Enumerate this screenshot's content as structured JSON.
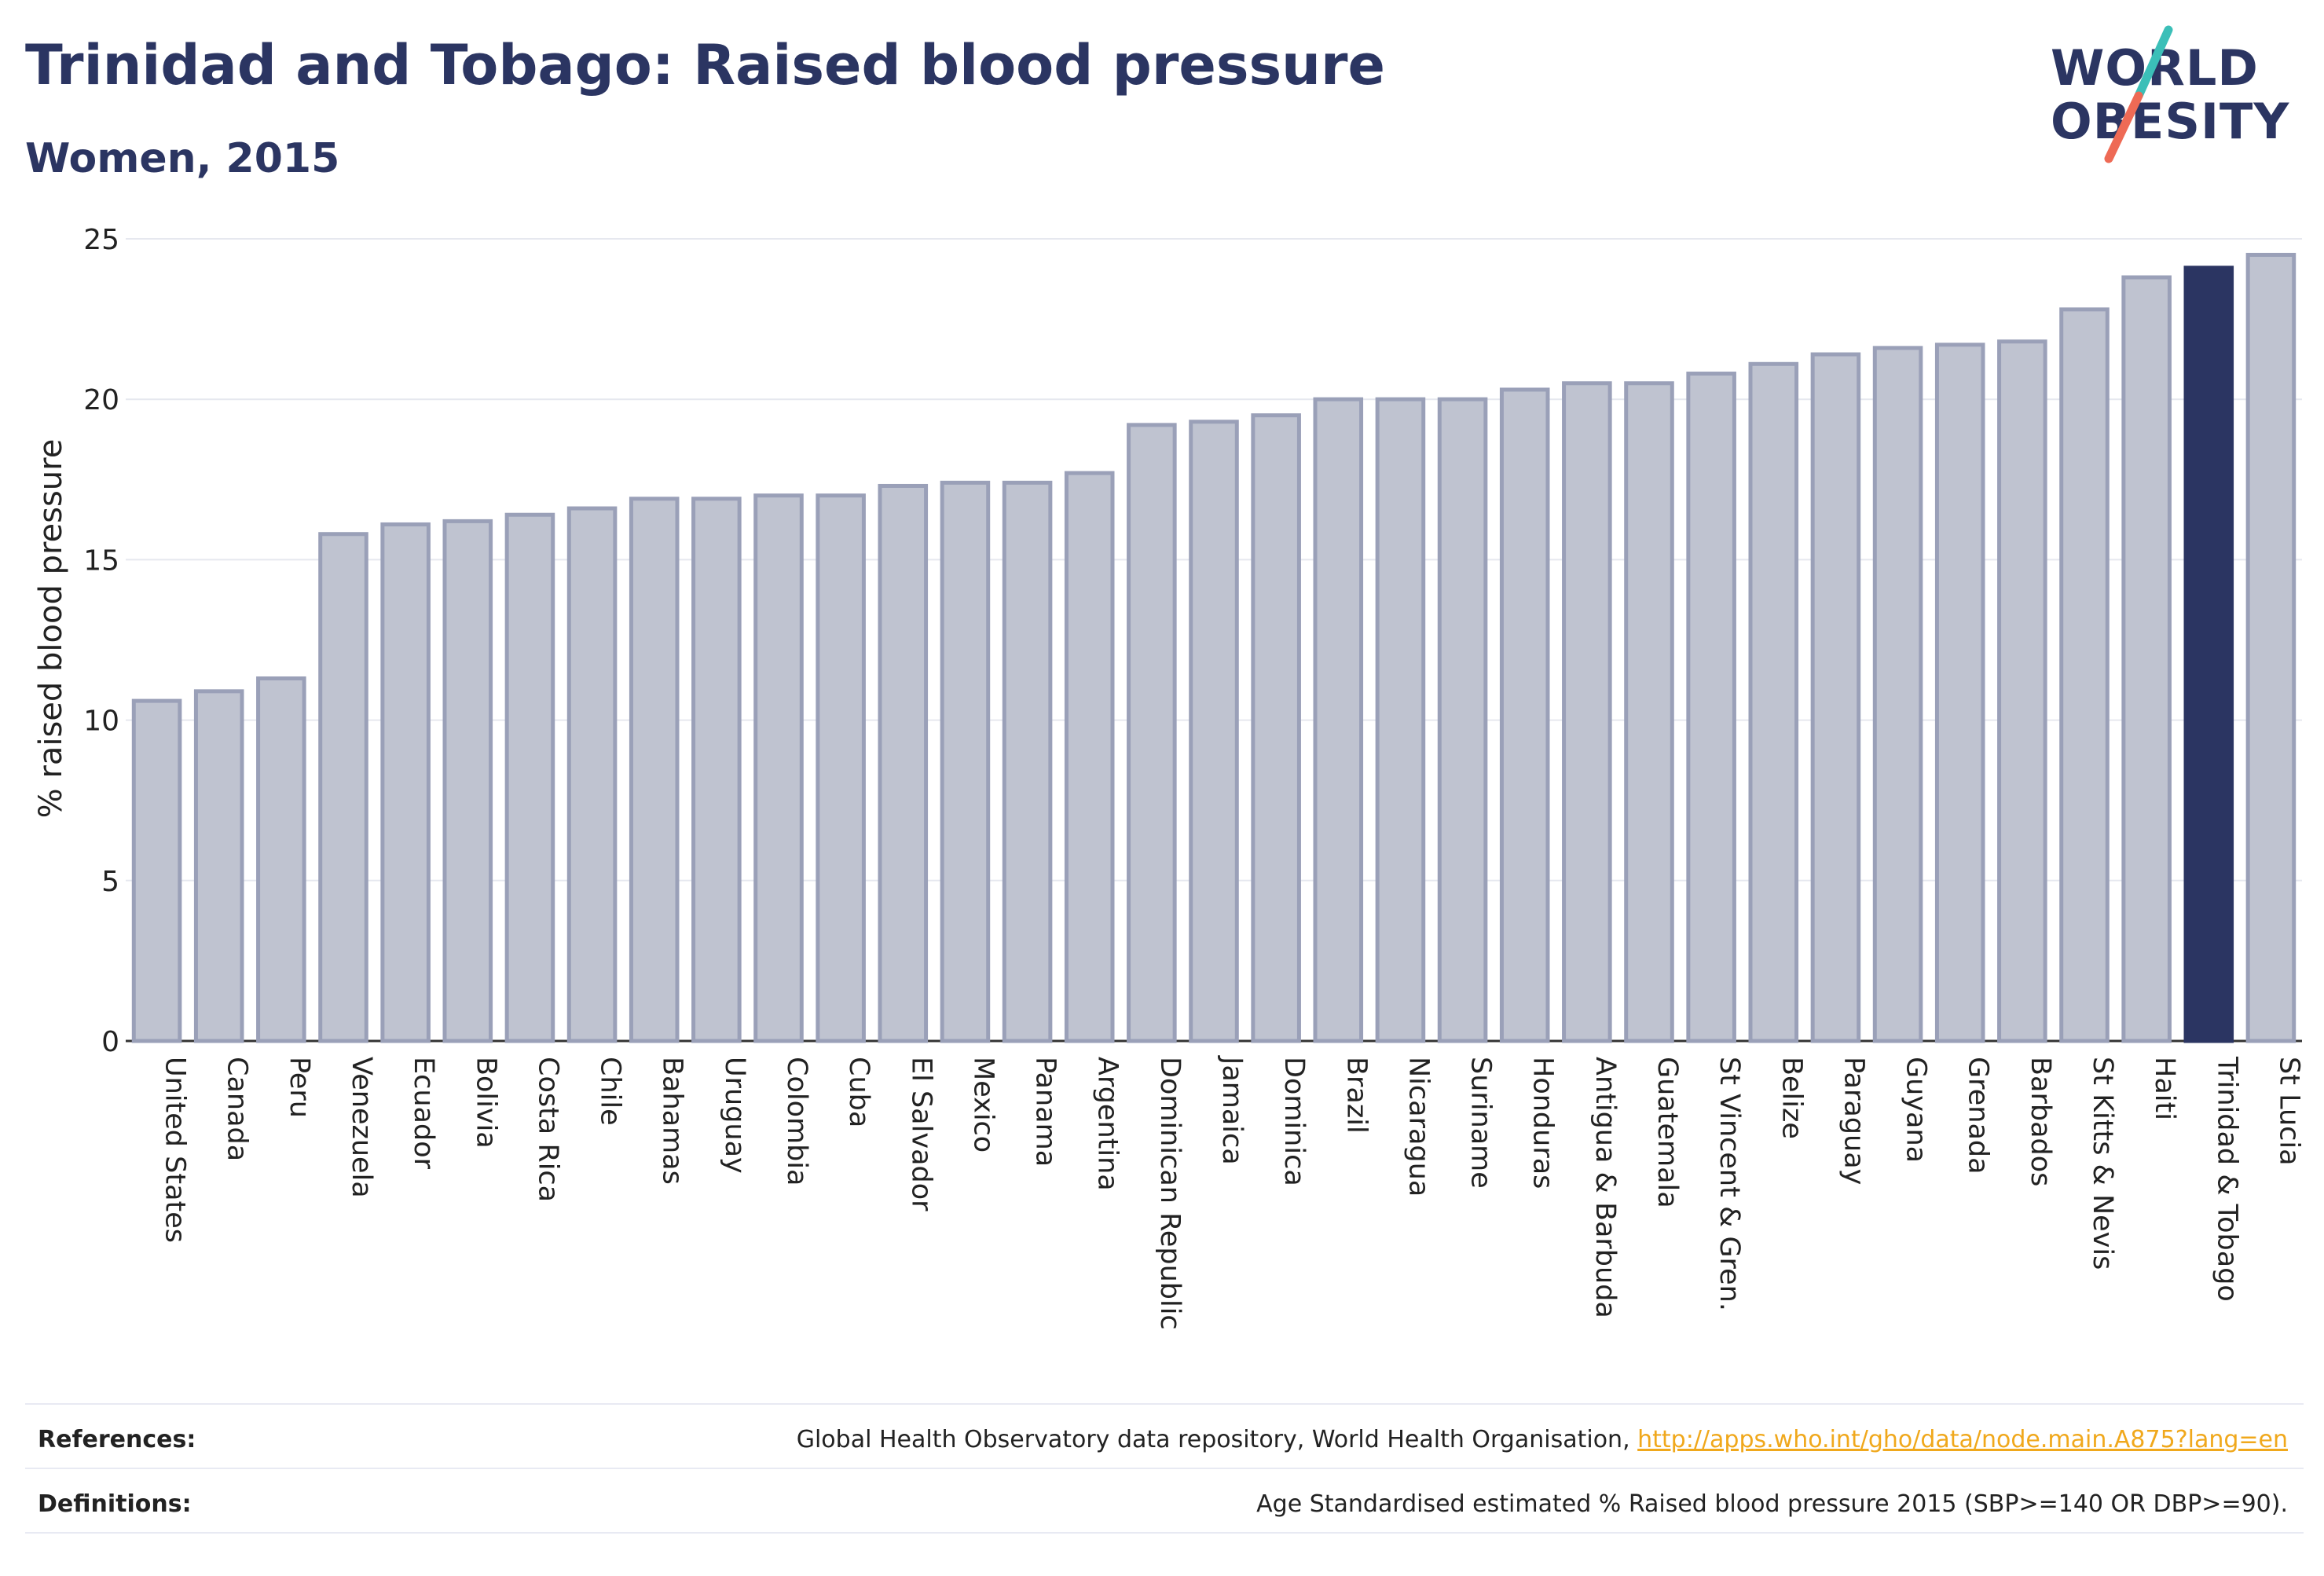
{
  "header": {
    "title": "Trinidad and Tobago: Raised blood pressure",
    "subtitle": "Women, 2015"
  },
  "logo": {
    "line1": "WORLD",
    "line2": "OBESITY",
    "colors": {
      "text": "#2b3562",
      "slash_top": "#3bbfb8",
      "slash_bottom": "#ee6a55"
    }
  },
  "colors": {
    "bar_fill": "#bfc3d0",
    "bar_stroke": "#9aa0b8",
    "highlight_fill": "#2b3562",
    "grid": "#e6e8ef",
    "axis_text": "#222222"
  },
  "chart_data": {
    "type": "bar",
    "ylabel": "% raised blood pressure",
    "xlabel": "",
    "ylim": [
      0,
      25
    ],
    "yticks": [
      0,
      5,
      10,
      15,
      20,
      25
    ],
    "grid": true,
    "highlight": "Trinidad & Tobago",
    "categories": [
      "United States",
      "Canada",
      "Peru",
      "Venezuela",
      "Ecuador",
      "Bolivia",
      "Costa Rica",
      "Chile",
      "Bahamas",
      "Uruguay",
      "Colombia",
      "Cuba",
      "El Salvador",
      "Mexico",
      "Panama",
      "Argentina",
      "Dominican Republic",
      "Jamaica",
      "Dominica",
      "Brazil",
      "Nicaragua",
      "Suriname",
      "Honduras",
      "Antigua & Barbuda",
      "Guatemala",
      "St Vincent & Gren.",
      "Belize",
      "Paraguay",
      "Guyana",
      "Grenada",
      "Barbados",
      "St Kitts & Nevis",
      "Haiti",
      "Trinidad & Tobago",
      "St Lucia"
    ],
    "values": [
      10.6,
      10.9,
      11.3,
      15.8,
      16.1,
      16.2,
      16.4,
      16.6,
      16.9,
      16.9,
      17.0,
      17.0,
      17.3,
      17.4,
      17.4,
      17.7,
      19.2,
      19.3,
      19.5,
      20.0,
      20.0,
      20.0,
      20.3,
      20.5,
      20.5,
      20.8,
      21.1,
      21.4,
      21.6,
      21.7,
      21.8,
      22.8,
      23.8,
      24.1,
      24.5
    ]
  },
  "footer": {
    "references_label": "References:",
    "references_text": "Global Health Observatory data repository, World Health Organisation, ",
    "references_link": "http://apps.who.int/gho/data/node.main.A875?lang=en",
    "definitions_label": "Definitions:",
    "definitions_text": "Age Standardised estimated % Raised blood pressure 2015 (SBP>=140 OR DBP>=90)."
  }
}
